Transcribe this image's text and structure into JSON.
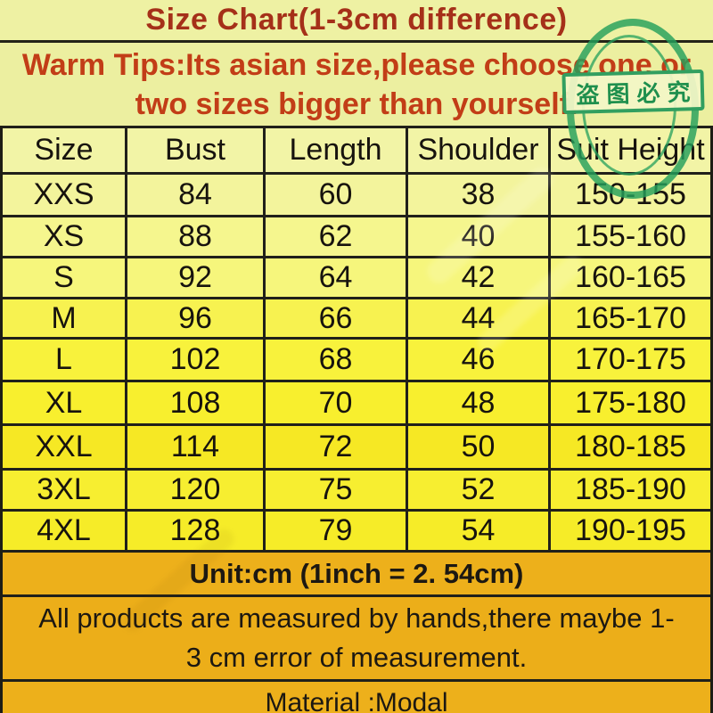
{
  "chart_data": {
    "type": "table",
    "title": "Size Chart(1-3cm difference)",
    "warm_tips_line1": "Warm Tips:Its asian size,please choose one or",
    "warm_tips_line2": "two sizes bigger than yourself.",
    "columns": [
      "Size",
      "Bust",
      "Length",
      "Shoulder",
      "Suit Height"
    ],
    "rows": [
      [
        "XXS",
        "84",
        "60",
        "38",
        "150-155"
      ],
      [
        "XS",
        "88",
        "62",
        "40",
        "155-160"
      ],
      [
        "S",
        "92",
        "64",
        "42",
        "160-165"
      ],
      [
        "M",
        "96",
        "66",
        "44",
        "165-170"
      ],
      [
        "L",
        "102",
        "68",
        "46",
        "170-175"
      ],
      [
        "XL",
        "108",
        "70",
        "48",
        "175-180"
      ],
      [
        "XXL",
        "114",
        "72",
        "50",
        "180-185"
      ],
      [
        "3XL",
        "120",
        "75",
        "52",
        "185-190"
      ],
      [
        "4XL",
        "128",
        "79",
        "54",
        "190-195"
      ]
    ],
    "unit_note": "Unit:cm (1inch = 2. 54cm)",
    "footer_note_line1": "All products are measured by hands,there maybe 1-",
    "footer_note_line2": "3 cm error of measurement.",
    "material_note": "Material :Modal",
    "stamp_text": "盗图必究"
  },
  "colors": {
    "title_red": "#a53019",
    "tips_red": "#c23d17",
    "table_text": "#17130e",
    "pale_yellow_top": "#eef1a2",
    "bright_yellow_rows": "#f8f02c",
    "gold_band": "#edb01b",
    "grid_line": "#20201a",
    "stamp_green": "#24a05c"
  }
}
